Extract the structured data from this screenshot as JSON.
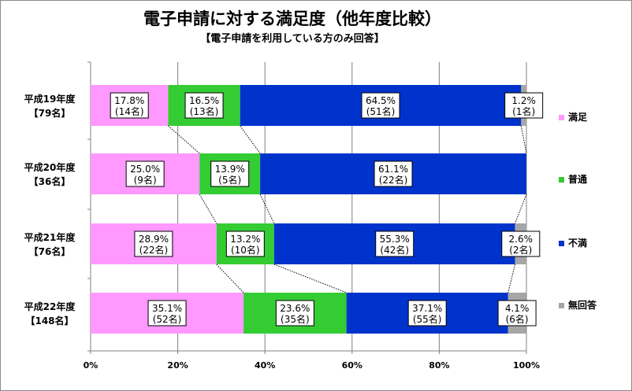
{
  "chart_data": {
    "type": "bar",
    "orientation": "horizontal",
    "stacked": "percent",
    "title": "電子申請に対する満足度（他年度比較）",
    "subtitle": "【電子申請を利用している方のみ回答】",
    "categories": [
      {
        "year": "平成19年度",
        "count": "【79名】"
      },
      {
        "year": "平成20年度",
        "count": "【36名】"
      },
      {
        "year": "平成21年度",
        "count": "【76名】"
      },
      {
        "year": "平成22年度",
        "count": "【148名】"
      }
    ],
    "series": [
      {
        "name": "満足",
        "color": "#ff99ff",
        "values": [
          17.8,
          25.0,
          28.9,
          35.1
        ],
        "labels": [
          [
            "17.8%",
            "(14名)"
          ],
          [
            "25.0%",
            "(9名)"
          ],
          [
            "28.9%",
            "(22名)"
          ],
          [
            "35.1%",
            "(52名)"
          ]
        ]
      },
      {
        "name": "普通",
        "color": "#33cc33",
        "values": [
          16.5,
          13.9,
          13.2,
          23.6
        ],
        "labels": [
          [
            "16.5%",
            "(13名)"
          ],
          [
            "13.9%",
            "(5名)"
          ],
          [
            "13.2%",
            "(10名)"
          ],
          [
            "23.6%",
            "(35名)"
          ]
        ]
      },
      {
        "name": "不満",
        "color": "#0033cc",
        "values": [
          64.5,
          61.1,
          55.3,
          37.1
        ],
        "labels": [
          [
            "64.5%",
            "(51名)"
          ],
          [
            "61.1%",
            "(22名)"
          ],
          [
            "55.3%",
            "(42名)"
          ],
          [
            "37.1%",
            "(55名)"
          ]
        ]
      },
      {
        "name": "無回答",
        "color": "#a6a6a6",
        "values": [
          1.2,
          0,
          2.6,
          4.1
        ],
        "labels": [
          [
            "1.2%",
            "(1名)"
          ],
          null,
          [
            "2.6%",
            "(2名)"
          ],
          [
            "4.1%",
            "(6名)"
          ]
        ]
      }
    ],
    "xticks": [
      "0%",
      "20%",
      "40%",
      "60%",
      "80%",
      "100%"
    ],
    "xlim": [
      0,
      100
    ],
    "grid": "vertical",
    "legend": "right",
    "series_lines": true
  }
}
